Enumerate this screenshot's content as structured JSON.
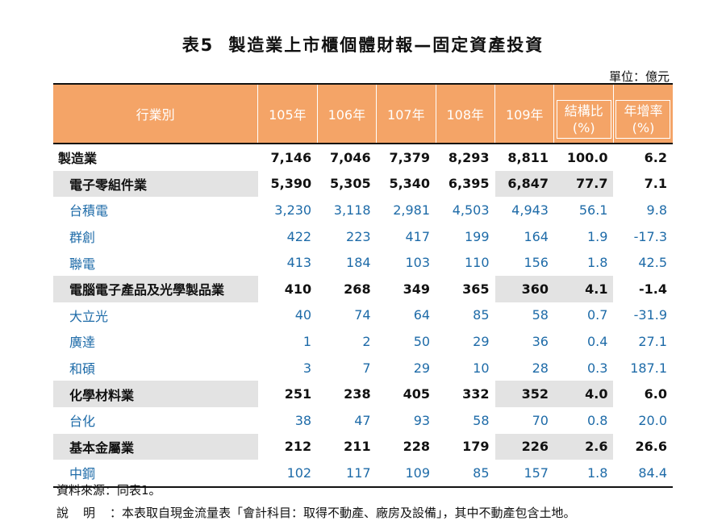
{
  "title": {
    "number": "表5",
    "text": "製造業上市櫃個體財報—固定資產投資"
  },
  "unit": "單位：億元",
  "table": {
    "headers": {
      "industry": "行業別",
      "years": [
        "105年",
        "106年",
        "107年",
        "108年",
        "109年"
      ],
      "share": [
        "結構比",
        "(%)"
      ],
      "growth": [
        "年增率",
        "(%)"
      ]
    },
    "rows": [
      {
        "type": "total",
        "name": "製造業",
        "values": [
          "7,146",
          "7,046",
          "7,379",
          "8,293",
          "8,811",
          "100.0",
          "6.2"
        ]
      },
      {
        "type": "cat",
        "name": "電子零組件業",
        "values": [
          "5,390",
          "5,305",
          "5,340",
          "6,395",
          "6,847",
          "77.7",
          "7.1"
        ]
      },
      {
        "type": "co",
        "name": "台積電",
        "values": [
          "3,230",
          "3,118",
          "2,981",
          "4,503",
          "4,943",
          "56.1",
          "9.8"
        ]
      },
      {
        "type": "co",
        "name": "群創",
        "values": [
          "422",
          "223",
          "417",
          "199",
          "164",
          "1.9",
          "-17.3"
        ]
      },
      {
        "type": "co",
        "name": "聯電",
        "values": [
          "413",
          "184",
          "103",
          "110",
          "156",
          "1.8",
          "42.5"
        ]
      },
      {
        "type": "cat",
        "name": "電腦電子產品及光學製品業",
        "values": [
          "410",
          "268",
          "349",
          "365",
          "360",
          "4.1",
          "-1.4"
        ]
      },
      {
        "type": "co",
        "name": "大立光",
        "values": [
          "40",
          "74",
          "64",
          "85",
          "58",
          "0.7",
          "-31.9"
        ]
      },
      {
        "type": "co",
        "name": "廣達",
        "values": [
          "1",
          "2",
          "50",
          "29",
          "36",
          "0.4",
          "27.1"
        ]
      },
      {
        "type": "co",
        "name": "和碩",
        "values": [
          "3",
          "7",
          "29",
          "10",
          "28",
          "0.3",
          "187.1"
        ]
      },
      {
        "type": "cat",
        "name": "化學材料業",
        "values": [
          "251",
          "238",
          "405",
          "332",
          "352",
          "4.0",
          "6.0"
        ]
      },
      {
        "type": "co",
        "name": "台化",
        "values": [
          "38",
          "47",
          "93",
          "58",
          "70",
          "0.8",
          "20.0"
        ]
      },
      {
        "type": "cat",
        "name": "基本金屬業",
        "values": [
          "212",
          "211",
          "228",
          "179",
          "226",
          "2.6",
          "26.6"
        ]
      },
      {
        "type": "co",
        "name": "中鋼",
        "values": [
          "102",
          "117",
          "109",
          "85",
          "157",
          "1.8",
          "84.4"
        ]
      }
    ]
  },
  "notes": {
    "source": "資料來源：同表1。",
    "explain_label": "說明",
    "explain_text": "：本表取自現金流量表「會計科目：取得不動產、廠房及設備」，其中不動產包含土地。"
  }
}
